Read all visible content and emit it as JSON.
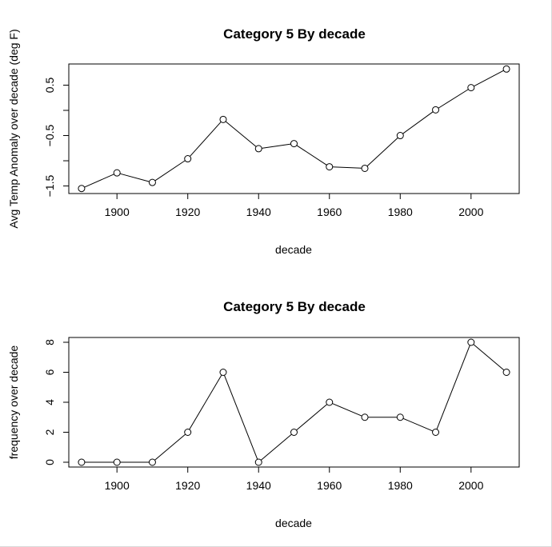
{
  "chart_data": [
    {
      "type": "line",
      "title": "Category 5 By decade",
      "xlabel": "decade",
      "ylabel": "Avg Temp Anomaly over decade (deg F)",
      "x": [
        1890,
        1900,
        1910,
        1920,
        1930,
        1940,
        1950,
        1960,
        1970,
        1980,
        1990,
        2000,
        2010
      ],
      "y": [
        -1.55,
        -1.24,
        -1.43,
        -0.96,
        -0.18,
        -0.76,
        -0.66,
        -1.12,
        -1.15,
        -0.5,
        0.01,
        0.45,
        0.82
      ],
      "xlim": [
        1886.4,
        2013.6
      ],
      "ylim": [
        -1.65,
        0.92
      ],
      "xticks": [
        1900,
        1920,
        1940,
        1960,
        1980,
        2000
      ],
      "xtick_labels": [
        "1900",
        "1920",
        "1940",
        "1960",
        "1980",
        "2000"
      ],
      "yticks": [
        -1.5,
        -1.0,
        -0.5,
        0.0,
        0.5
      ],
      "ytick_labels": [
        "−1.5",
        "",
        "−0.5",
        "",
        "0.5"
      ],
      "marker": "open-circle",
      "grid": false
    },
    {
      "type": "line",
      "title": "Category 5 By decade",
      "xlabel": "decade",
      "ylabel": "frequency over decade",
      "x": [
        1890,
        1900,
        1910,
        1920,
        1930,
        1940,
        1950,
        1960,
        1970,
        1980,
        1990,
        2000,
        2010
      ],
      "y": [
        0,
        0,
        0,
        2,
        6,
        0,
        2,
        4,
        3,
        3,
        2,
        8,
        6
      ],
      "xlim": [
        1886.4,
        2013.6
      ],
      "ylim": [
        -0.32,
        8.32
      ],
      "xticks": [
        1900,
        1920,
        1940,
        1960,
        1980,
        2000
      ],
      "xtick_labels": [
        "1900",
        "1920",
        "1940",
        "1960",
        "1980",
        "2000"
      ],
      "yticks": [
        0,
        2,
        4,
        6,
        8
      ],
      "ytick_labels": [
        "0",
        "2",
        "4",
        "6",
        "8"
      ],
      "marker": "open-circle",
      "grid": false
    }
  ]
}
